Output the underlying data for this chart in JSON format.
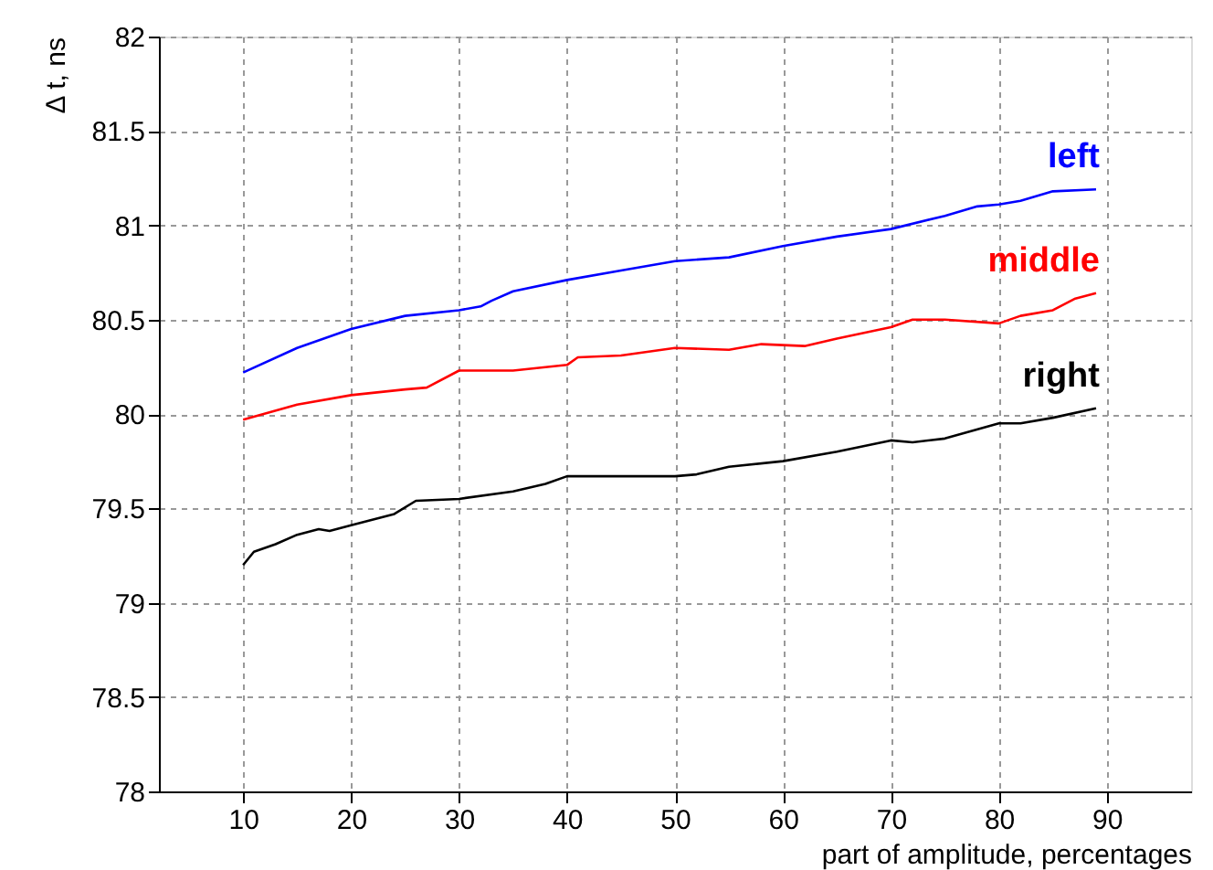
{
  "chart_data": {
    "type": "line",
    "xlabel": "part of amplitude, percentages",
    "ylabel": "Δ t, ns",
    "xlim": [
      2.2,
      97.8
    ],
    "xticks": [
      10,
      20,
      30,
      40,
      50,
      60,
      70,
      80,
      90
    ],
    "ylim": [
      78,
      82
    ],
    "yticks": [
      78,
      78.5,
      79,
      79.5,
      80,
      80.5,
      81,
      81.5,
      82
    ],
    "grid": true,
    "marker": "none",
    "line_style": "solid",
    "series": [
      {
        "name": "left",
        "color": "#0000ff",
        "x": [
          10,
          15,
          20,
          25,
          30,
          32,
          33,
          35,
          40,
          45,
          50,
          55,
          60,
          65,
          70,
          75,
          78,
          80,
          82,
          85,
          89
        ],
        "values": [
          80.22,
          80.35,
          80.45,
          80.52,
          80.55,
          80.57,
          80.6,
          80.65,
          80.71,
          80.76,
          80.81,
          80.83,
          80.89,
          80.94,
          80.98,
          81.05,
          81.1,
          81.11,
          81.13,
          81.18,
          81.19
        ]
      },
      {
        "name": "middle",
        "color": "#ff0000",
        "x": [
          10,
          15,
          20,
          25,
          27,
          30,
          35,
          40,
          41,
          45,
          50,
          55,
          58,
          62,
          65,
          70,
          72,
          75,
          80,
          82,
          85,
          87,
          89
        ],
        "values": [
          79.97,
          80.05,
          80.1,
          80.13,
          80.14,
          80.23,
          80.23,
          80.26,
          80.3,
          80.31,
          80.35,
          80.34,
          80.37,
          80.36,
          80.4,
          80.46,
          80.5,
          80.5,
          80.48,
          80.52,
          80.55,
          80.61,
          80.64
        ]
      },
      {
        "name": "right",
        "color": "#000000",
        "x": [
          10,
          11,
          13,
          15,
          17,
          18,
          20,
          24,
          26,
          30,
          35,
          38,
          40,
          45,
          50,
          52,
          55,
          60,
          65,
          70,
          72,
          75,
          80,
          82,
          85,
          89
        ],
        "values": [
          79.2,
          79.27,
          79.31,
          79.36,
          79.39,
          79.38,
          79.41,
          79.47,
          79.54,
          79.55,
          79.59,
          79.63,
          79.67,
          79.67,
          79.67,
          79.68,
          79.72,
          79.75,
          79.8,
          79.86,
          79.85,
          79.87,
          79.95,
          79.95,
          79.98,
          80.03
        ]
      }
    ]
  }
}
